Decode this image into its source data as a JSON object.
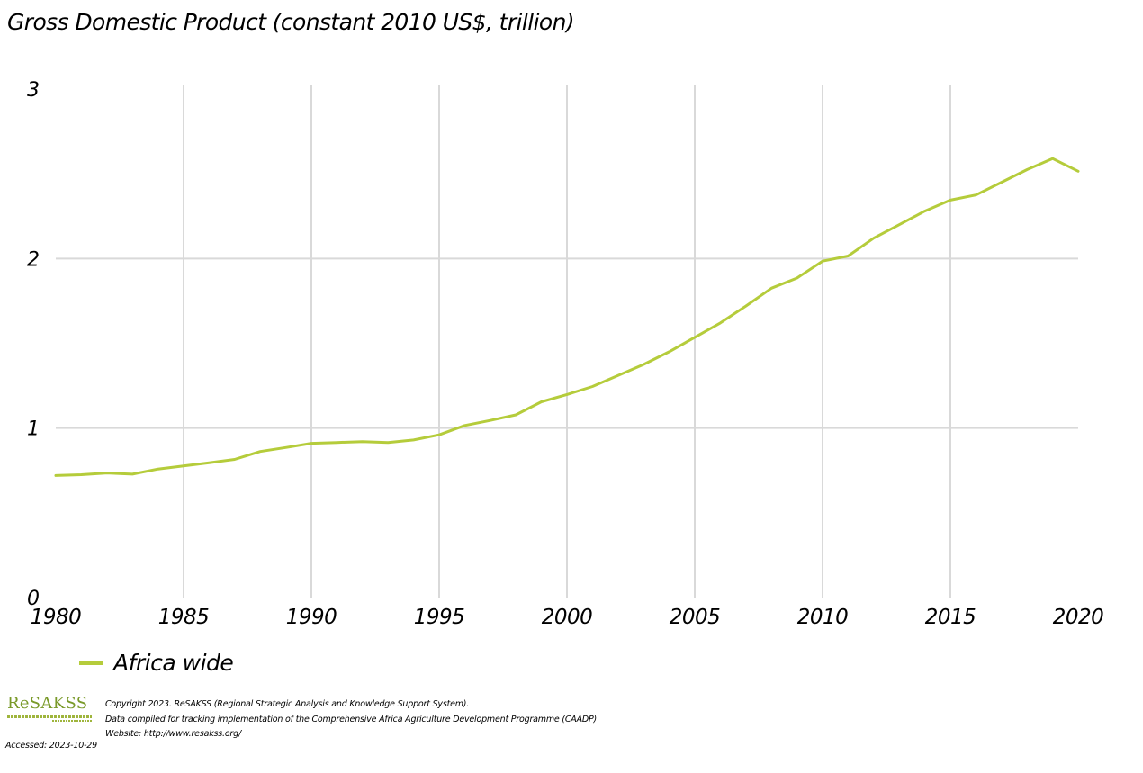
{
  "chart_data": {
    "type": "line",
    "title": "Gross Domestic Product (constant 2010 US$, trillion)",
    "xlabel": "",
    "ylabel": "",
    "xlim": [
      1980,
      2020
    ],
    "ylim": [
      0,
      3
    ],
    "x_ticks": [
      "1980",
      "1985",
      "1990",
      "1995",
      "2000",
      "2005",
      "2010",
      "2015",
      "2020"
    ],
    "y_ticks": [
      "0",
      "1",
      "2",
      "3"
    ],
    "grid": {
      "vertical": true,
      "horizontal": true
    },
    "legend_position": "bottom-left",
    "series": [
      {
        "name": "Africa wide",
        "color": "#b5cc3b",
        "x": [
          1980,
          1981,
          1982,
          1983,
          1984,
          1985,
          1986,
          1987,
          1988,
          1989,
          1990,
          1991,
          1992,
          1993,
          1994,
          1995,
          1996,
          1997,
          1998,
          1999,
          2000,
          2001,
          2002,
          2003,
          2004,
          2005,
          2006,
          2007,
          2008,
          2009,
          2010,
          2011,
          2012,
          2013,
          2014,
          2015,
          2016,
          2017,
          2018,
          2019,
          2020
        ],
        "values": [
          0.72,
          0.725,
          0.735,
          0.728,
          0.758,
          0.777,
          0.795,
          0.815,
          0.862,
          0.885,
          0.91,
          0.915,
          0.92,
          0.915,
          0.93,
          0.96,
          1.015,
          1.045,
          1.078,
          1.155,
          1.198,
          1.245,
          1.31,
          1.375,
          1.45,
          1.535,
          1.62,
          1.72,
          1.825,
          1.885,
          1.985,
          2.015,
          2.12,
          2.2,
          2.28,
          2.345,
          2.375,
          2.45,
          2.525,
          2.59,
          2.515
        ]
      }
    ]
  },
  "footer": {
    "logo_text": "ReSAKSS",
    "copyright_line1": "Copyright 2023. ReSAKSS (Regional Strategic Analysis and Knowledge Support System).",
    "copyright_line2": "Data compiled for tracking implementation of the Comprehensive Africa Agriculture Development Programme (CAADP)",
    "copyright_line3": "Website: http://www.resakss.org/",
    "accessed": "Accessed: 2023-10-29"
  }
}
